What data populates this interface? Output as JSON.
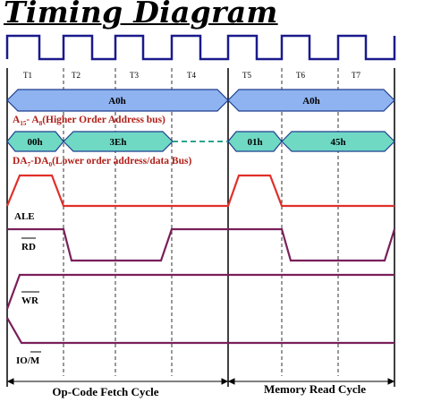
{
  "title": "Timing Diagram",
  "states": [
    "T1",
    "T2",
    "T3",
    "T4",
    "T5",
    "T6",
    "T7"
  ],
  "address_high": {
    "values": [
      "A0h",
      "A0h"
    ],
    "label_main": "A",
    "label_sub1": "15",
    "label_mid": "- A",
    "label_sub2": "8",
    "label_rest": "(Higher Order Address bus)"
  },
  "address_low": {
    "values": [
      "00h",
      "3Eh",
      "01h",
      "45h"
    ],
    "label_main": "DA",
    "label_sub1": "7",
    "label_mid": "-DA",
    "label_sub2": "0",
    "label_rest": "(Lower order address/data Bus)"
  },
  "signals": {
    "ale": "ALE",
    "rd": "RD",
    "wr": "WR",
    "io_m": "IO/M"
  },
  "cycles": [
    "Op-Code Fetch Cycle",
    "Memory Read Cycle"
  ],
  "colors": {
    "clock": "#1a1a8c",
    "bus_high_fill": "#8fb3f0",
    "bus_low_fill": "#6fd9c4",
    "bus_stroke": "#1f3f8f",
    "bus_label": "#b0201a",
    "ale_wave": "#e0302a",
    "rd_wave": "#7a1f5a",
    "wr_wave": "#7a1f5a",
    "iom_wave": "#7a1f5a",
    "dashed_line": "#2aa58a"
  }
}
